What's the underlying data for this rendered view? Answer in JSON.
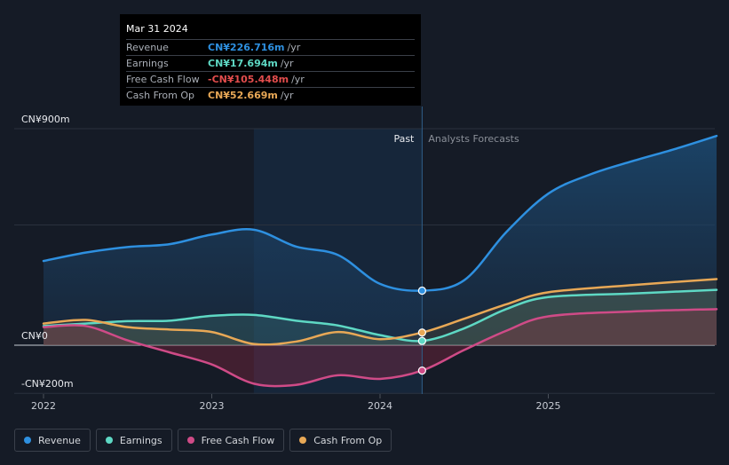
{
  "chart_data": {
    "type": "area",
    "title": "",
    "ylim": [
      -200,
      900
    ],
    "y_tick_labels": [
      {
        "value": 900,
        "label": "CN¥900m"
      },
      {
        "value": 0,
        "label": "CN¥0"
      },
      {
        "value": -200,
        "label": "-CN¥200m"
      }
    ],
    "gridlines": [
      900,
      500,
      0,
      -200
    ],
    "x_tick_labels": [
      {
        "value": 2022.0,
        "label": "2022"
      },
      {
        "value": 2023.0,
        "label": "2023"
      },
      {
        "value": 2024.0,
        "label": "2024"
      },
      {
        "value": 2025.0,
        "label": "2025"
      }
    ],
    "xlim": [
      2022.0,
      2026.0
    ],
    "past_label": "Past",
    "forecast_label": "Analysts Forecasts",
    "highlight_start": 2023.25,
    "divider_x": 2024.25,
    "series": [
      {
        "name": "Revenue",
        "color": "#2e90e0",
        "x": [
          2022.0,
          2022.25,
          2022.5,
          2022.75,
          2023.0,
          2023.25,
          2023.5,
          2023.75,
          2024.0,
          2024.25,
          2024.5,
          2024.75,
          2025.0,
          2025.25,
          2025.5,
          2025.75,
          2026.0
        ],
        "values": [
          350,
          385,
          408,
          420,
          460,
          480,
          410,
          375,
          255,
          226.716,
          270,
          470,
          630,
          710,
          765,
          815,
          870
        ]
      },
      {
        "name": "Earnings",
        "color": "#5ed8c4",
        "x": [
          2022.0,
          2022.25,
          2022.5,
          2022.75,
          2023.0,
          2023.25,
          2023.5,
          2023.75,
          2024.0,
          2024.25,
          2024.5,
          2024.75,
          2025.0,
          2025.5,
          2026.0
        ],
        "values": [
          80,
          90,
          100,
          102,
          122,
          126,
          102,
          82,
          42,
          17.694,
          70,
          150,
          200,
          215,
          230
        ]
      },
      {
        "name": "Free Cash Flow",
        "color": "#cf4b87",
        "x": [
          2022.0,
          2022.25,
          2022.5,
          2022.75,
          2023.0,
          2023.25,
          2023.5,
          2023.75,
          2024.0,
          2024.25,
          2024.5,
          2024.75,
          2025.0,
          2025.5,
          2026.0
        ],
        "values": [
          75,
          80,
          20,
          -30,
          -80,
          -160,
          -165,
          -125,
          -140,
          -105.448,
          -20,
          60,
          120,
          140,
          150
        ]
      },
      {
        "name": "Cash From Op",
        "color": "#e8a856",
        "x": [
          2022.0,
          2022.25,
          2022.5,
          2022.75,
          2023.0,
          2023.25,
          2023.5,
          2023.75,
          2024.0,
          2024.25,
          2024.5,
          2024.75,
          2025.0,
          2025.5,
          2026.0
        ],
        "values": [
          90,
          105,
          75,
          65,
          55,
          5,
          15,
          55,
          25,
          52.669,
          110,
          170,
          220,
          250,
          275
        ]
      }
    ]
  },
  "tooltip": {
    "date": "Mar 31 2024",
    "rows": [
      {
        "label": "Revenue",
        "value": "CN¥226.716m",
        "unit": "/yr",
        "color": "#2e90e0"
      },
      {
        "label": "Earnings",
        "value": "CN¥17.694m",
        "unit": "/yr",
        "color": "#5ed8c4"
      },
      {
        "label": "Free Cash Flow",
        "value": "-CN¥105.448m",
        "unit": "/yr",
        "color": "#e34d4d"
      },
      {
        "label": "Cash From Op",
        "value": "CN¥52.669m",
        "unit": "/yr",
        "color": "#e8a856"
      }
    ]
  },
  "legend": [
    {
      "label": "Revenue",
      "color": "#2e90e0"
    },
    {
      "label": "Earnings",
      "color": "#5ed8c4"
    },
    {
      "label": "Free Cash Flow",
      "color": "#cf4b87"
    },
    {
      "label": "Cash From Op",
      "color": "#e8a856"
    }
  ]
}
